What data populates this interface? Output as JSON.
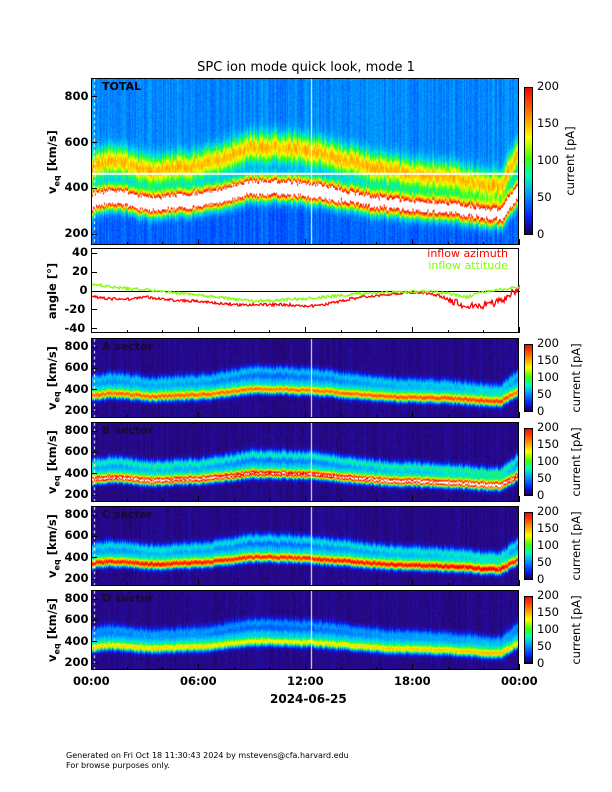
{
  "title": "SPC ion mode quick look, mode 1",
  "date_label": "2024-06-25",
  "footer": {
    "line1": "Generated on Fri Oct 18 11:30:43 2024 by mstevens@cfa.harvard.edu",
    "line2": "For browse purposes only."
  },
  "colors": {
    "azimuth": "#ff0000",
    "attitude": "#80ff00"
  },
  "chart_data": [
    {
      "type": "heatmap",
      "panel_label": "TOTAL",
      "ylabel": "v_eq [km/s]",
      "yticks": [
        "200",
        "400",
        "600",
        "800"
      ],
      "ylim": [
        150,
        880
      ],
      "colorbar": {
        "label": "current [pA]",
        "ticks": [
          "0",
          "50",
          "100",
          "150",
          "200"
        ],
        "range": [
          0,
          200
        ]
      },
      "peak_speed_kms_hourly": [
        340,
        360,
        350,
        330,
        330,
        340,
        345,
        360,
        380,
        400,
        400,
        395,
        390,
        380,
        365,
        350,
        335,
        325,
        320,
        315,
        310,
        300,
        285,
        280,
        380
      ]
    },
    {
      "type": "line",
      "ylabel": "angle [°]",
      "yticks": [
        "-40",
        "-20",
        "0",
        "20",
        "40"
      ],
      "ylim": [
        -45,
        45
      ],
      "legend": [
        "inflow azimuth",
        "inflow attitude"
      ],
      "legend_position": "top-right",
      "x_hours": [
        0,
        1,
        2,
        3,
        4,
        5,
        6,
        7,
        8,
        9,
        10,
        11,
        12,
        13,
        14,
        15,
        16,
        17,
        18,
        19,
        20,
        21,
        22,
        23,
        24
      ],
      "series": [
        {
          "name": "inflow azimuth",
          "values": [
            -5,
            -8,
            -8,
            -6,
            -8,
            -10,
            -10,
            -12,
            -14,
            -14,
            -14,
            -14,
            -16,
            -14,
            -10,
            -6,
            -4,
            -2,
            -1,
            -2,
            -8,
            -16,
            -14,
            -10,
            5
          ]
        },
        {
          "name": "inflow attitude",
          "values": [
            8,
            5,
            3,
            2,
            0,
            -2,
            -4,
            -6,
            -8,
            -10,
            -10,
            -8,
            -8,
            -6,
            -4,
            -2,
            -2,
            0,
            0,
            0,
            -2,
            -6,
            0,
            2,
            5
          ]
        }
      ]
    },
    {
      "type": "heatmap",
      "panel_label": "A sector",
      "ylabel": "v_eq [km/s]",
      "yticks": [
        "200",
        "400",
        "600",
        "800"
      ],
      "ylim": [
        130,
        880
      ],
      "colorbar": {
        "label": "current [pA]",
        "ticks": [
          "0",
          "50",
          "100",
          "150",
          "200"
        ],
        "range": [
          0,
          200
        ]
      }
    },
    {
      "type": "heatmap",
      "panel_label": "B sector",
      "ylabel": "v_eq [km/s]",
      "yticks": [
        "200",
        "400",
        "600",
        "800"
      ],
      "ylim": [
        130,
        880
      ],
      "colorbar": {
        "label": "current [pA]",
        "ticks": [
          "0",
          "50",
          "100",
          "150",
          "200"
        ],
        "range": [
          0,
          200
        ]
      }
    },
    {
      "type": "heatmap",
      "panel_label": "C sector",
      "ylabel": "v_eq [km/s]",
      "yticks": [
        "200",
        "400",
        "600",
        "800"
      ],
      "ylim": [
        130,
        880
      ],
      "colorbar": {
        "label": "current [pA]",
        "ticks": [
          "0",
          "50",
          "100",
          "150",
          "200"
        ],
        "range": [
          0,
          200
        ]
      }
    },
    {
      "type": "heatmap",
      "panel_label": "D sector",
      "ylabel": "v_eq [km/s]",
      "yticks": [
        "200",
        "400",
        "600",
        "800"
      ],
      "ylim": [
        130,
        880
      ],
      "colorbar": {
        "label": "current [pA]",
        "ticks": [
          "0",
          "50",
          "100",
          "150",
          "200"
        ],
        "range": [
          0,
          200
        ]
      }
    }
  ],
  "xaxis": {
    "ticks": [
      "00:00",
      "06:00",
      "12:00",
      "18:00",
      "00:00"
    ],
    "range_hours": [
      0,
      24
    ]
  }
}
